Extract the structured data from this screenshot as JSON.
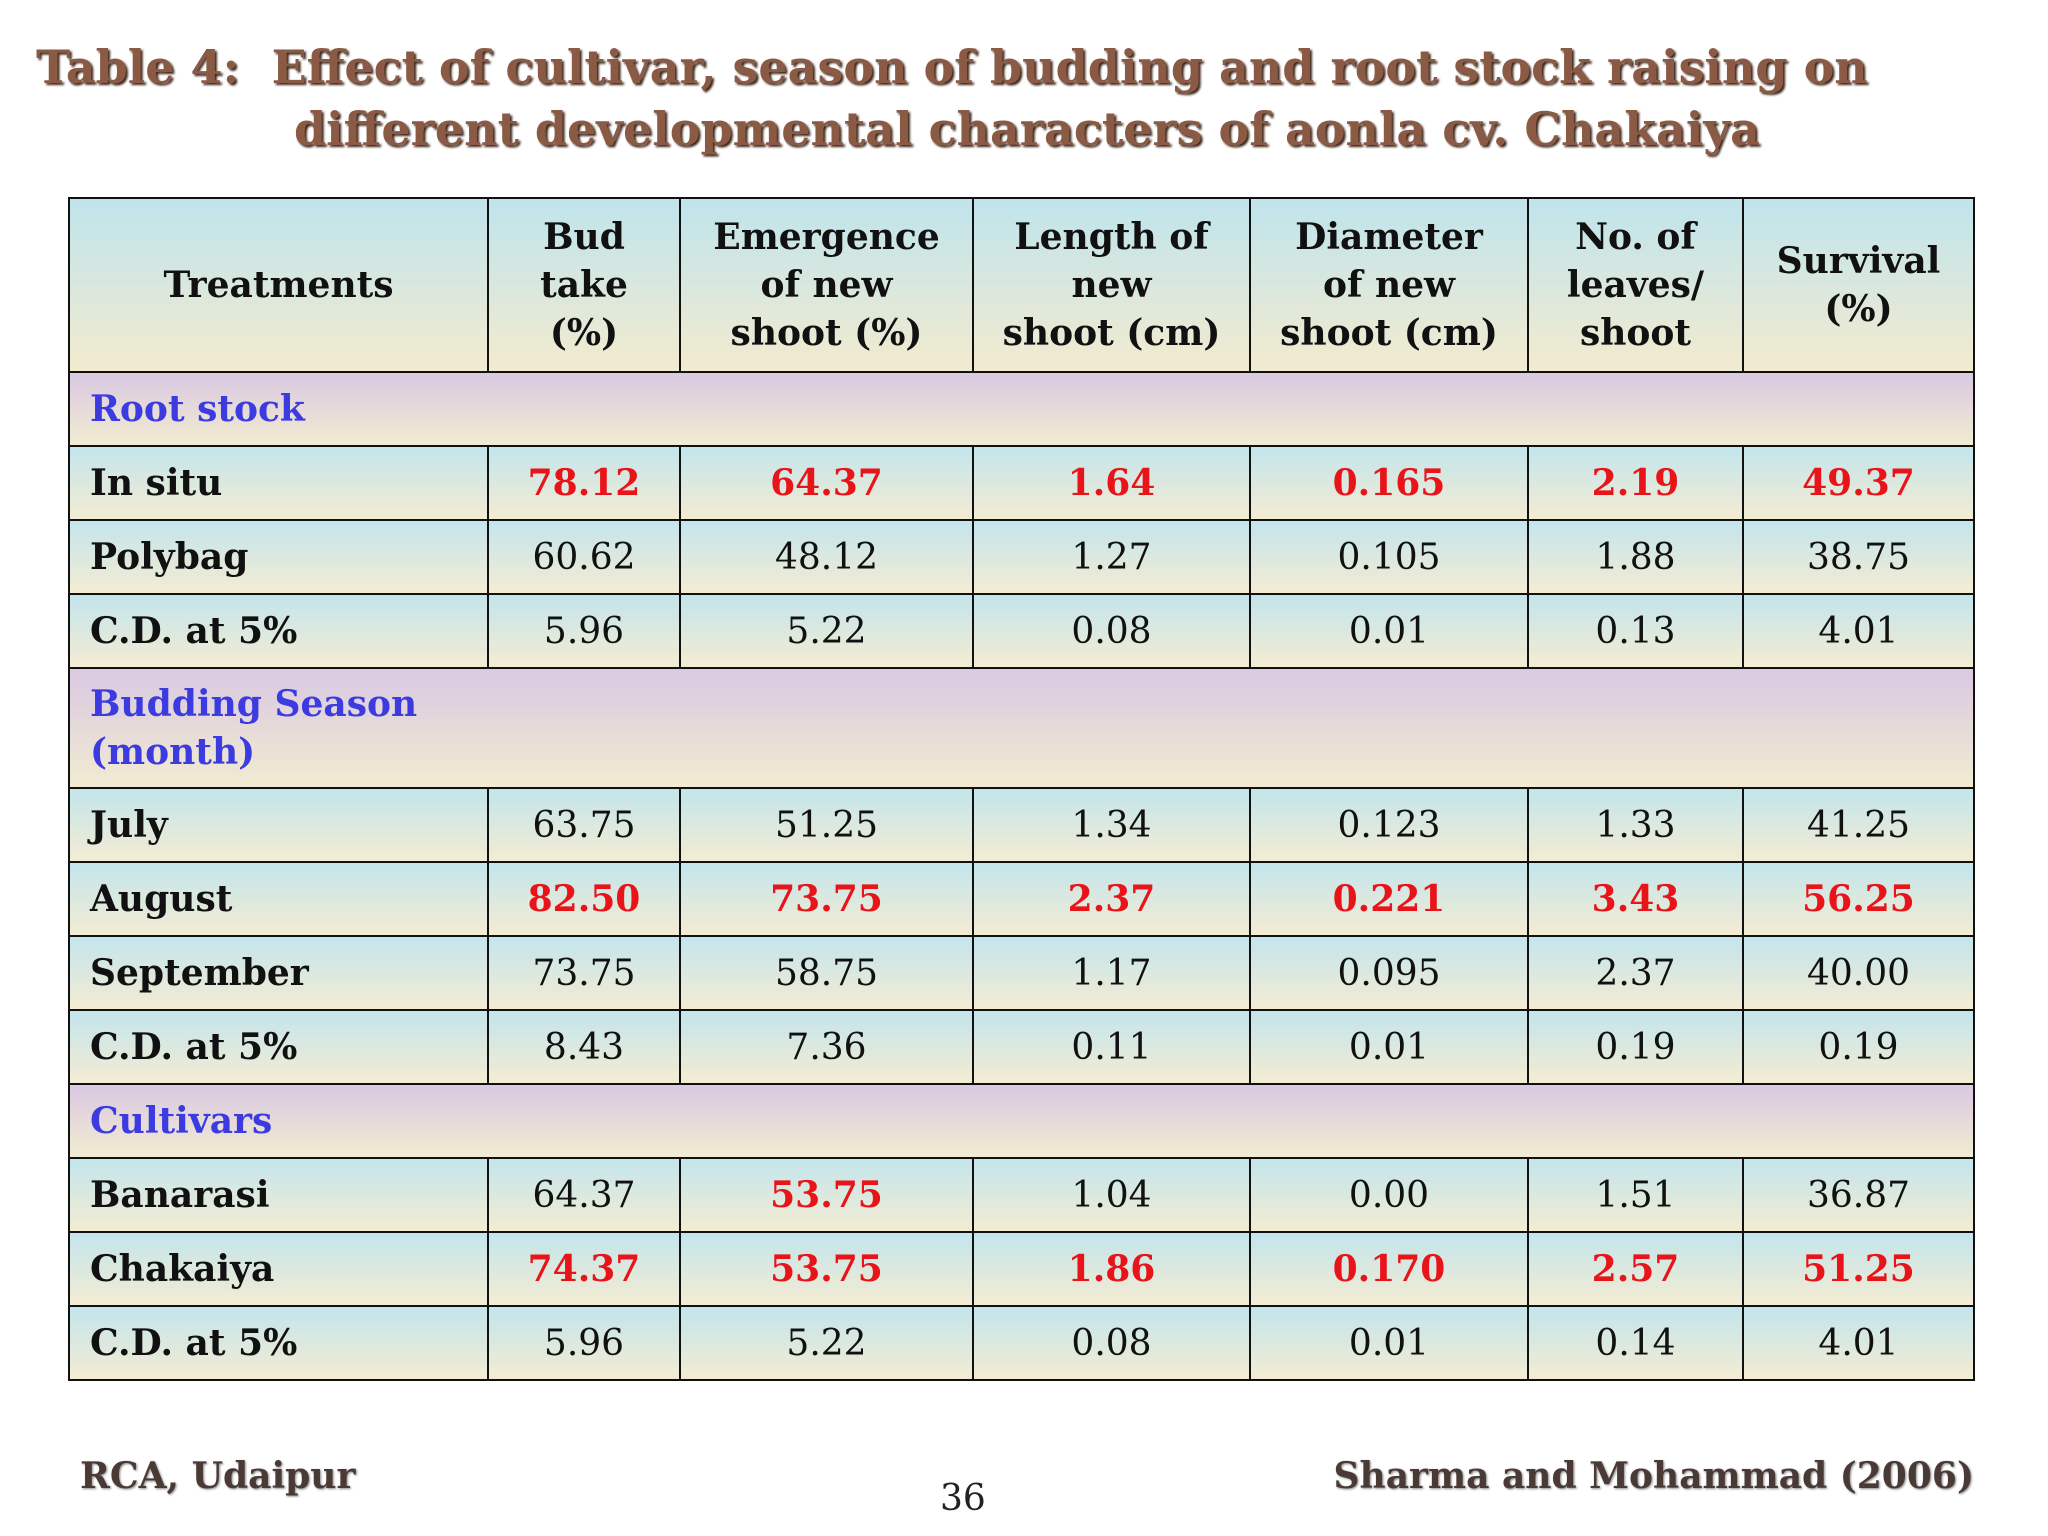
{
  "header": {
    "title_line1": "Table 4:  Effect of cultivar, season of budding and root stock raising on",
    "title_line2": "different developmental characters of aonla cv. Chakaiya"
  },
  "table": {
    "columns": [
      "Treatments",
      "Bud\ntake\n(%)",
      "Emergence\nof new\nshoot (%)",
      "Length of\nnew\nshoot (cm)",
      "Diameter\nof new\nshoot (cm)",
      "No. of\nleaves/\nshoot",
      "Survival\n(%)"
    ],
    "sections": [
      {
        "title": "Root stock",
        "rows": [
          {
            "label": "In situ",
            "cells": [
              "78.12",
              "64.37",
              "1.64",
              "0.165",
              "2.19",
              "49.37"
            ],
            "highlighted": [
              true,
              true,
              true,
              true,
              true,
              true
            ]
          },
          {
            "label": "Polybag",
            "cells": [
              "60.62",
              "48.12",
              "1.27",
              "0.105",
              "1.88",
              "38.75"
            ],
            "highlighted": [
              false,
              false,
              false,
              false,
              false,
              false
            ]
          },
          {
            "label": "C.D. at 5%",
            "cells": [
              "5.96",
              "5.22",
              "0.08",
              "0.01",
              "0.13",
              "4.01"
            ],
            "highlighted": [
              false,
              false,
              false,
              false,
              false,
              false
            ]
          }
        ]
      },
      {
        "title": "Budding Season\n(month)",
        "rows": [
          {
            "label": "July",
            "cells": [
              "63.75",
              "51.25",
              "1.34",
              "0.123",
              "1.33",
              "41.25"
            ],
            "highlighted": [
              false,
              false,
              false,
              false,
              false,
              false
            ]
          },
          {
            "label": "August",
            "cells": [
              "82.50",
              "73.75",
              "2.37",
              "0.221",
              "3.43",
              "56.25"
            ],
            "highlighted": [
              true,
              true,
              true,
              true,
              true,
              true
            ]
          },
          {
            "label": "September",
            "cells": [
              "73.75",
              "58.75",
              "1.17",
              "0.095",
              "2.37",
              "40.00"
            ],
            "highlighted": [
              false,
              false,
              false,
              false,
              false,
              false
            ]
          },
          {
            "label": "C.D. at 5%",
            "cells": [
              "8.43",
              "7.36",
              "0.11",
              "0.01",
              "0.19",
              "0.19"
            ],
            "highlighted": [
              false,
              false,
              false,
              false,
              false,
              false
            ]
          }
        ]
      },
      {
        "title": "Cultivars",
        "rows": [
          {
            "label": "Banarasi",
            "cells": [
              "64.37",
              "53.75",
              "1.04",
              "0.00",
              "1.51",
              "36.87"
            ],
            "highlighted": [
              false,
              true,
              false,
              false,
              false,
              false
            ]
          },
          {
            "label": "Chakaiya",
            "cells": [
              "74.37",
              "53.75",
              "1.86",
              "0.170",
              "2.57",
              "51.25"
            ],
            "highlighted": [
              true,
              true,
              true,
              true,
              true,
              true
            ]
          },
          {
            "label": "C.D. at 5%",
            "cells": [
              "5.96",
              "5.22",
              "0.08",
              "0.01",
              "0.14",
              "4.01"
            ],
            "highlighted": [
              false,
              false,
              false,
              false,
              false,
              false
            ]
          }
        ]
      }
    ]
  },
  "footer": {
    "left": "RCA, Udaipur",
    "page": "36",
    "right": "Sharma and Mohammad (2006)"
  }
}
